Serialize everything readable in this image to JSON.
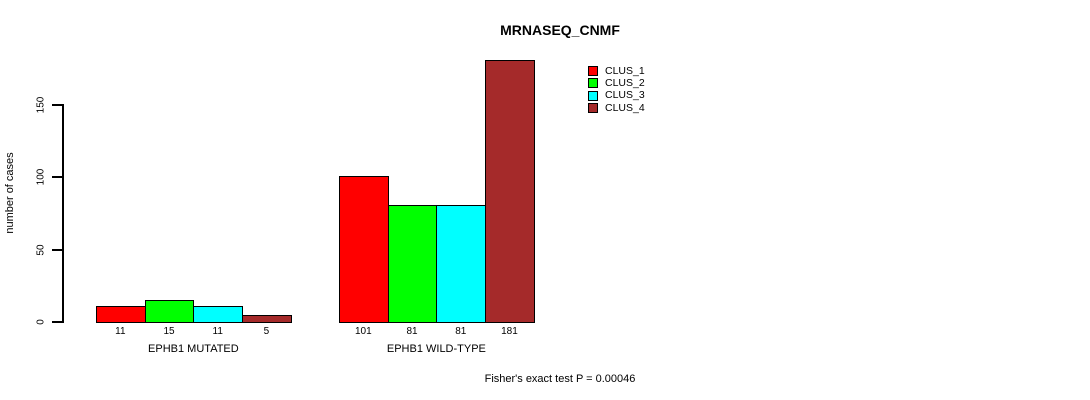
{
  "chart_data": {
    "type": "bar",
    "title": "MRNASEQ_CNMF",
    "ylabel": "number of cases",
    "xlabel": "",
    "categories": [
      "EPHB1 MUTATED",
      "EPHB1 WILD-TYPE"
    ],
    "series": [
      {
        "name": "CLUS_1",
        "color": "#FF0000",
        "values": [
          11,
          101
        ]
      },
      {
        "name": "CLUS_2",
        "color": "#00FF00",
        "values": [
          15,
          81
        ]
      },
      {
        "name": "CLUS_3",
        "color": "#00FFFF",
        "values": [
          11,
          81
        ]
      },
      {
        "name": "CLUS_4",
        "color": "#A52A2A",
        "values": [
          5,
          181
        ]
      }
    ],
    "bar_value_labels": [
      [
        "11",
        "15",
        "11",
        "5"
      ],
      [
        "101",
        "81",
        "81",
        "181"
      ]
    ],
    "yticks": [
      "0",
      "50",
      "100",
      "150"
    ],
    "ylim": [
      0,
      150
    ],
    "grid": false,
    "legend_position": "top-right",
    "annotation": "Fisher's exact test P = 0.00046",
    "colors": {
      "background": "#FFFFFF",
      "axis": "#000000",
      "text": "#000000"
    }
  }
}
